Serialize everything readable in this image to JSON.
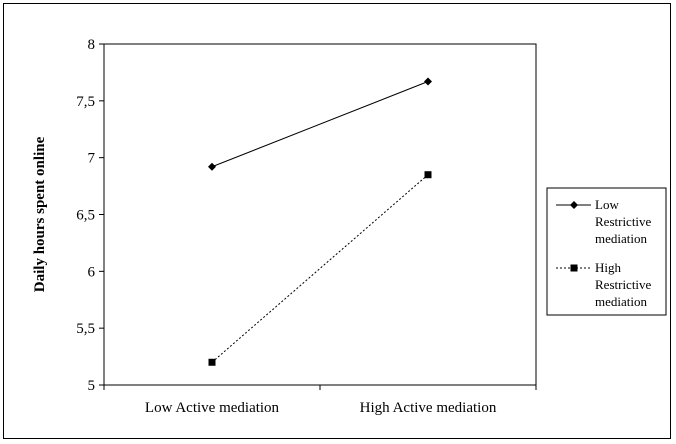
{
  "chart_data": {
    "type": "line",
    "categories": [
      "Low Active mediation",
      "High Active mediation"
    ],
    "ylabel": "Daily hours spent online",
    "xlabel": "",
    "ylim": [
      5,
      8
    ],
    "yticks": [
      "5",
      "5,5",
      "6",
      "6,5",
      "7",
      "7,5",
      "8"
    ],
    "grid": false,
    "legend_position": "right",
    "series": [
      {
        "name": "Low Restrictive mediation",
        "legend_lines": [
          "Low",
          "Restrictive",
          "mediation"
        ],
        "values": [
          6.92,
          7.67
        ],
        "marker": "diamond",
        "line_style": "solid",
        "color": "#000000"
      },
      {
        "name": "High Restrictive mediation",
        "legend_lines": [
          "High",
          "Restrictive",
          "mediation"
        ],
        "values": [
          5.2,
          6.85
        ],
        "marker": "square",
        "line_style": "dotted",
        "color": "#000000"
      }
    ]
  }
}
